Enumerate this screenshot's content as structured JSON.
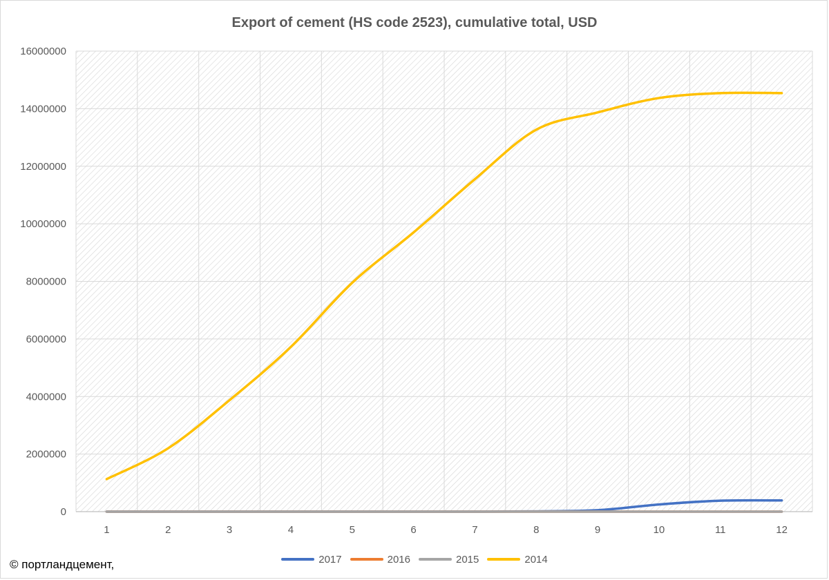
{
  "chart_data": {
    "type": "line",
    "title": "Export of cement (HS code 2523), cumulative total, USD",
    "xlabel": "",
    "ylabel": "",
    "x": [
      1,
      2,
      3,
      4,
      5,
      6,
      7,
      8,
      9,
      10,
      11,
      12
    ],
    "ylim": [
      0,
      16000000
    ],
    "yticks": [
      0,
      2000000,
      4000000,
      6000000,
      8000000,
      10000000,
      12000000,
      14000000,
      16000000
    ],
    "grid": true,
    "legend_position": "bottom",
    "series": [
      {
        "name": "2017",
        "color": "#4472c4",
        "values": [
          0,
          0,
          0,
          0,
          0,
          0,
          0,
          10000,
          50000,
          250000,
          380000,
          390000
        ]
      },
      {
        "name": "2016",
        "color": "#ed7d31",
        "values": [
          0,
          0,
          0,
          0,
          0,
          0,
          0,
          0,
          0,
          0,
          0,
          0
        ]
      },
      {
        "name": "2015",
        "color": "#a5a5a5",
        "values": [
          0,
          0,
          0,
          0,
          0,
          0,
          0,
          0,
          0,
          0,
          0,
          0
        ]
      },
      {
        "name": "2014",
        "color": "#ffc000",
        "values": [
          1130000,
          2200000,
          3870000,
          5720000,
          7950000,
          9700000,
          11550000,
          13270000,
          13870000,
          14370000,
          14540000,
          14540000
        ]
      }
    ]
  },
  "credit": "© портландцемент,"
}
